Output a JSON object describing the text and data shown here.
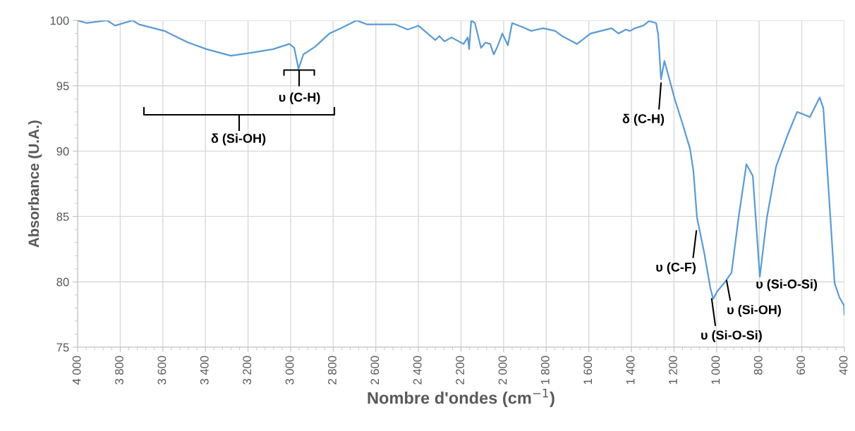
{
  "chart_data": {
    "type": "line",
    "xlabel": "Nombre d'ondes (cm$^{−1}$)",
    "ylabel": "Absorbance (U.A.)",
    "xlim": [
      4000,
      400
    ],
    "ylim": [
      75,
      100
    ],
    "xticks": [
      {
        "value": 4000,
        "label": "4 000"
      },
      {
        "value": 3800,
        "label": "3 800"
      },
      {
        "value": 3600,
        "label": "3 600"
      },
      {
        "value": 3400,
        "label": "3 400"
      },
      {
        "value": 3200,
        "label": "3 200"
      },
      {
        "value": 3000,
        "label": "3 000"
      },
      {
        "value": 2800,
        "label": "2 800"
      },
      {
        "value": 2600,
        "label": "2 600"
      },
      {
        "value": 2400,
        "label": "2 400"
      },
      {
        "value": 2200,
        "label": "2 200"
      },
      {
        "value": 2000,
        "label": "2 000"
      },
      {
        "value": 1800,
        "label": "1 800"
      },
      {
        "value": 1600,
        "label": "1 600"
      },
      {
        "value": 1400,
        "label": "1 400"
      },
      {
        "value": 1200,
        "label": "1 200"
      },
      {
        "value": 1000,
        "label": "1 000"
      },
      800,
      600,
      400
    ],
    "yticks": [
      75,
      80,
      85,
      90,
      95,
      100
    ],
    "grid": true,
    "marker": "none",
    "line_style": "solid",
    "series": [
      {
        "color": "#5b9bd5",
        "x": [
          4000,
          3957,
          3861,
          3824,
          3742,
          3712,
          3593,
          3480,
          3394,
          3281,
          3195,
          3083,
          3006,
          2983,
          2963,
          2940,
          2884,
          2818,
          2765,
          2690,
          2642,
          2510,
          2450,
          2400,
          2321,
          2301,
          2278,
          2245,
          2188,
          2168,
          2162,
          2152,
          2135,
          2106,
          2086,
          2063,
          2046,
          2029,
          2006,
          1980,
          1960,
          1913,
          1870,
          1814,
          1758,
          1725,
          1655,
          1592,
          1493,
          1460,
          1427,
          1407,
          1384,
          1344,
          1317,
          1284,
          1274,
          1261,
          1245,
          1195,
          1162,
          1125,
          1109,
          1092,
          1059,
          1029,
          1016,
          996,
          960,
          930,
          897,
          860,
          830,
          797,
          764,
          721,
          665,
          622,
          589,
          562,
          516,
          499,
          446,
          423,
          402,
          400
        ],
        "values": [
          100.0,
          99.8,
          100.0,
          99.6,
          100.0,
          99.7,
          99.2,
          98.3,
          97.8,
          97.3,
          97.5,
          97.8,
          98.2,
          97.9,
          96.3,
          97.4,
          98.0,
          99.0,
          99.4,
          100.0,
          99.7,
          99.7,
          99.3,
          99.6,
          98.5,
          98.8,
          98.4,
          98.7,
          98.2,
          98.7,
          97.8,
          100.0,
          99.8,
          97.9,
          98.3,
          98.2,
          97.4,
          98.0,
          99.0,
          98.1,
          99.8,
          99.5,
          99.2,
          99.4,
          99.2,
          98.8,
          98.2,
          99.0,
          99.4,
          99.0,
          99.3,
          99.2,
          99.4,
          99.6,
          99.95,
          99.8,
          98.9,
          95.5,
          96.9,
          93.9,
          92.2,
          90.2,
          88.5,
          84.9,
          82.3,
          79.5,
          78.7,
          79.3,
          80.0,
          80.7,
          84.9,
          89.0,
          88.1,
          80.4,
          84.9,
          88.8,
          91.3,
          93.0,
          92.8,
          92.6,
          94.1,
          93.3,
          79.9,
          78.8,
          78.2,
          77.5
        ]
      }
    ],
    "annotations": [
      {
        "text": "υ (C-H)",
        "x": 2960,
        "y": 96.2
      },
      "δ (Si-OH)",
      {
        "text": "δ (C-H)",
        "x": 1261,
        "y": 95.2
      },
      {
        "text": "υ (C-F)",
        "x": 1095,
        "y": 83.9
      },
      {
        "text": "υ (Si-O-Si)",
        "x": 1023,
        "y": 78.7
      },
      {
        "text": "υ (Si-OH)",
        "x": 953,
        "y": 80.1
      },
      {
        "text": "υ (Si-O-Si)",
        "x": 797,
        "y": 80.4
      }
    ]
  }
}
